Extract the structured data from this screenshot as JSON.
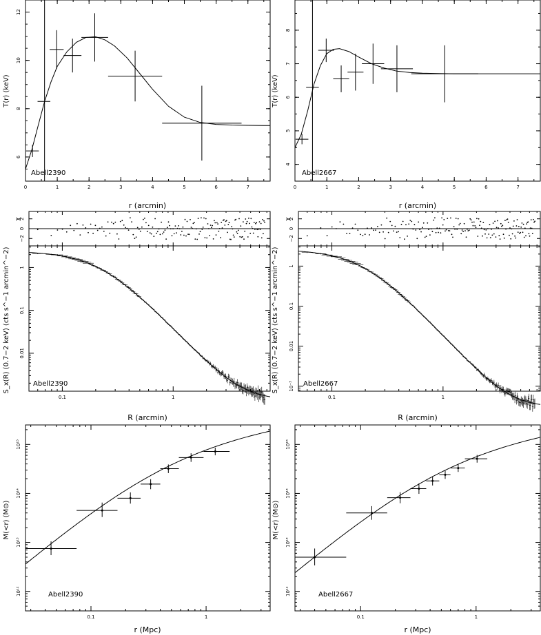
{
  "figure": {
    "background": "#ffffff",
    "ink": "#000000"
  },
  "chart_data": [
    {
      "id": "T_A2390",
      "type": "scatter",
      "panel_label": "Abell2390",
      "xlabel": "r (arcmin)",
      "ylabel": "T(r)  (keV)",
      "xlim": [
        0,
        7.7
      ],
      "ylim": [
        5,
        12.5
      ],
      "xticks": [
        0,
        1,
        2,
        3,
        4,
        5,
        6,
        7
      ],
      "yticks": [
        6,
        8,
        10,
        12
      ],
      "vline_x": 0.6,
      "points": [
        {
          "x": 0.22,
          "y": 6.25,
          "xerr": 0.2,
          "yerr": 0.25
        },
        {
          "x": 0.58,
          "y": 8.3,
          "xerr": 0.2,
          "yerr": 0.0
        },
        {
          "x": 0.98,
          "y": 10.45,
          "xerr": 0.22,
          "yerr": 0.8
        },
        {
          "x": 1.48,
          "y": 10.2,
          "xerr": 0.28,
          "yerr": 0.7
        },
        {
          "x": 2.18,
          "y": 10.95,
          "xerr": 0.42,
          "yerr": 1.0
        },
        {
          "x": 3.45,
          "y": 9.35,
          "xerr": 0.85,
          "yerr": 1.05
        },
        {
          "x": 5.55,
          "y": 7.4,
          "xerr": 1.25,
          "yerr": 1.55
        }
      ],
      "model_curve": {
        "x": [
          0,
          0.2,
          0.4,
          0.6,
          0.8,
          1.0,
          1.3,
          1.6,
          1.9,
          2.2,
          2.5,
          2.8,
          3.2,
          3.6,
          4.0,
          4.5,
          5.0,
          5.5,
          6.0,
          6.5,
          7.0,
          7.7
        ],
        "y": [
          5.5,
          6.3,
          7.3,
          8.3,
          9.1,
          9.75,
          10.35,
          10.75,
          10.95,
          10.98,
          10.85,
          10.6,
          10.1,
          9.45,
          8.8,
          8.1,
          7.65,
          7.43,
          7.35,
          7.32,
          7.31,
          7.3
        ]
      }
    },
    {
      "id": "T_A2667",
      "type": "scatter",
      "panel_label": "Abell2667",
      "xlabel": "r (arcmin)",
      "ylabel": "T(r)  (keV)",
      "xlim": [
        0,
        7.7
      ],
      "ylim": [
        3.5,
        8.9
      ],
      "xticks": [
        0,
        1,
        2,
        3,
        4,
        5,
        6,
        7
      ],
      "yticks": [
        4,
        5,
        6,
        7,
        8
      ],
      "vline_x": 0.55,
      "points": [
        {
          "x": 0.22,
          "y": 4.75,
          "xerr": 0.2,
          "yerr": 0.15
        },
        {
          "x": 0.55,
          "y": 6.3,
          "xerr": 0.2,
          "yerr": 0.0
        },
        {
          "x": 0.98,
          "y": 7.4,
          "xerr": 0.25,
          "yerr": 0.35
        },
        {
          "x": 1.45,
          "y": 6.55,
          "xerr": 0.25,
          "yerr": 0.4
        },
        {
          "x": 1.9,
          "y": 6.75,
          "xerr": 0.25,
          "yerr": 0.55
        },
        {
          "x": 2.45,
          "y": 7.0,
          "xerr": 0.35,
          "yerr": 0.6
        },
        {
          "x": 3.2,
          "y": 6.85,
          "xerr": 0.5,
          "yerr": 0.7
        },
        {
          "x": 4.7,
          "y": 6.7,
          "xerr": 1.05,
          "yerr": 0.85
        }
      ],
      "model_curve": {
        "x": [
          0,
          0.2,
          0.4,
          0.6,
          0.8,
          1.0,
          1.2,
          1.4,
          1.7,
          2.0,
          2.4,
          2.8,
          3.2,
          3.6,
          4.0,
          4.5,
          5.0,
          6.0,
          7.0,
          7.7
        ],
        "y": [
          4.5,
          4.9,
          5.6,
          6.4,
          6.95,
          7.3,
          7.43,
          7.45,
          7.36,
          7.2,
          7.0,
          6.87,
          6.78,
          6.74,
          6.72,
          6.71,
          6.7,
          6.7,
          6.7,
          6.7
        ]
      }
    },
    {
      "id": "SB_A2390",
      "type": "line",
      "panel_label": "Abell2390",
      "xlabel": "R (arcmin)",
      "ylabel": "S_x(R) (0.7−2 keV) (cts s^−1 arcmin^−2)",
      "resid_ylabel": "χ",
      "xscale": "log",
      "yscale": "log",
      "xlim": [
        0.05,
        7.5
      ],
      "ylim": [
        0.0013,
        3.2
      ],
      "xtick_labels": [
        {
          "v": 0.1,
          "t": "0.1"
        },
        {
          "v": 1,
          "t": "1"
        }
      ],
      "ytick_labels": [
        {
          "v": 1,
          "t": "1"
        },
        {
          "v": 0.1,
          "t": "0.1"
        },
        {
          "v": 0.01,
          "t": "0.01"
        }
      ],
      "resid_ylim": [
        -3.5,
        3.5
      ],
      "resid_ticks": [
        {
          "v": 2,
          "t": "2"
        },
        {
          "v": 0,
          "t": "0"
        },
        {
          "v": -2,
          "t": "−2"
        }
      ],
      "beta_model": {
        "S0": 2.4,
        "rc": 0.22,
        "beta": 0.62,
        "bkg": 0.0008
      },
      "seed": 11
    },
    {
      "id": "SB_A2667",
      "type": "line",
      "panel_label": "Abell2667",
      "xlabel": "R (arcmin)",
      "ylabel": "S_x(R) (0.7−2 keV) (cts s^−1 arcmin^−2)",
      "resid_ylabel": "χ",
      "xscale": "log",
      "yscale": "log",
      "xlim": [
        0.05,
        7.5
      ],
      "ylim": [
        0.00075,
        3.2
      ],
      "xtick_labels": [
        {
          "v": 0.1,
          "t": "0.1"
        },
        {
          "v": 1,
          "t": "1"
        }
      ],
      "ytick_labels": [
        {
          "v": 1,
          "t": "1"
        },
        {
          "v": 0.1,
          "t": "0.1"
        },
        {
          "v": 0.01,
          "t": "0.01"
        },
        {
          "v": 0.001,
          "t": "10⁻³"
        }
      ],
      "resid_ylim": [
        -3.5,
        3.5
      ],
      "resid_ticks": [
        {
          "v": 2,
          "t": "2"
        },
        {
          "v": 0,
          "t": "0"
        },
        {
          "v": -2,
          "t": "−2"
        }
      ],
      "beta_model": {
        "S0": 2.6,
        "rc": 0.19,
        "beta": 0.66,
        "bkg": 0.0003
      },
      "seed": 23
    },
    {
      "id": "M_A2390",
      "type": "scatter",
      "panel_label": "Abell2390",
      "xlabel": "r (Mpc)",
      "ylabel": "M(<r)  (M⊙)",
      "xscale": "log",
      "yscale": "log",
      "xlim": [
        0.027,
        3.6
      ],
      "ylim": [
        400000000000.0,
        2500000000000000.0
      ],
      "xtick_labels": [
        {
          "v": 0.1,
          "t": "0.1"
        },
        {
          "v": 1,
          "t": "1"
        }
      ],
      "ytick_labels": [
        {
          "v": 1000000000000.0,
          "t": "10¹²"
        },
        {
          "v": 10000000000000.0,
          "t": "10¹³"
        },
        {
          "v": 100000000000000.0,
          "t": "10¹⁴"
        },
        {
          "v": 1000000000000000.0,
          "t": "10¹⁵"
        }
      ],
      "points": [
        {
          "x": 0.045,
          "y": 7500000000000.0,
          "xlo": 0.02,
          "xhi": 0.075,
          "ylo": 5500000000000.0,
          "yhi": 10500000000000.0
        },
        {
          "x": 0.125,
          "y": 45000000000000.0,
          "xlo": 0.075,
          "xhi": 0.17,
          "ylo": 33000000000000.0,
          "yhi": 65000000000000.0
        },
        {
          "x": 0.22,
          "y": 80000000000000.0,
          "xlo": 0.17,
          "xhi": 0.27,
          "ylo": 62000000000000.0,
          "yhi": 105000000000000.0
        },
        {
          "x": 0.33,
          "y": 155000000000000.0,
          "xlo": 0.27,
          "xhi": 0.4,
          "ylo": 122000000000000.0,
          "yhi": 195000000000000.0
        },
        {
          "x": 0.47,
          "y": 320000000000000.0,
          "xlo": 0.4,
          "xhi": 0.58,
          "ylo": 260000000000000.0,
          "yhi": 390000000000000.0
        },
        {
          "x": 0.74,
          "y": 540000000000000.0,
          "xlo": 0.58,
          "xhi": 0.95,
          "ylo": 440000000000000.0,
          "yhi": 660000000000000.0
        },
        {
          "x": 1.2,
          "y": 720000000000000.0,
          "xlo": 0.95,
          "xhi": 1.6,
          "ylo": 600000000000000.0,
          "yhi": 860000000000000.0
        }
      ],
      "nfw_model": {
        "A": 300000000000000.0,
        "rs": 0.33
      }
    },
    {
      "id": "M_A2667",
      "type": "scatter",
      "panel_label": "Abell2667",
      "xlabel": "r (Mpc)",
      "ylabel": "M(<r)  (M⊙)",
      "xscale": "log",
      "yscale": "log",
      "xlim": [
        0.027,
        3.6
      ],
      "ylim": [
        400000000000.0,
        2500000000000000.0
      ],
      "xtick_labels": [
        {
          "v": 0.1,
          "t": "0.1"
        },
        {
          "v": 1,
          "t": "1"
        }
      ],
      "ytick_labels": [
        {
          "v": 1000000000000.0,
          "t": "10¹²"
        },
        {
          "v": 10000000000000.0,
          "t": "10¹³"
        },
        {
          "v": 100000000000000.0,
          "t": "10¹⁴"
        },
        {
          "v": 1000000000000000.0,
          "t": "10¹⁵"
        }
      ],
      "points": [
        {
          "x": 0.04,
          "y": 5000000000000.0,
          "xlo": 0.02,
          "xhi": 0.075,
          "ylo": 3400000000000.0,
          "yhi": 7500000000000.0
        },
        {
          "x": 0.125,
          "y": 40000000000000.0,
          "xlo": 0.075,
          "xhi": 0.17,
          "ylo": 29000000000000.0,
          "yhi": 55000000000000.0
        },
        {
          "x": 0.22,
          "y": 82000000000000.0,
          "xlo": 0.17,
          "xhi": 0.27,
          "ylo": 63000000000000.0,
          "yhi": 106000000000000.0
        },
        {
          "x": 0.32,
          "y": 125000000000000.0,
          "xlo": 0.27,
          "xhi": 0.37,
          "ylo": 98000000000000.0,
          "yhi": 160000000000000.0
        },
        {
          "x": 0.42,
          "y": 180000000000000.0,
          "xlo": 0.37,
          "xhi": 0.48,
          "ylo": 145000000000000.0,
          "yhi": 225000000000000.0
        },
        {
          "x": 0.54,
          "y": 240000000000000.0,
          "xlo": 0.48,
          "xhi": 0.6,
          "ylo": 198000000000000.0,
          "yhi": 290000000000000.0
        },
        {
          "x": 0.7,
          "y": 330000000000000.0,
          "xlo": 0.6,
          "xhi": 0.8,
          "ylo": 275000000000000.0,
          "yhi": 395000000000000.0
        },
        {
          "x": 1.02,
          "y": 510000000000000.0,
          "xlo": 0.8,
          "xhi": 1.25,
          "ylo": 425000000000000.0,
          "yhi": 610000000000000.0
        }
      ],
      "nfw_model": {
        "A": 235000000000000.0,
        "rs": 0.36
      }
    }
  ]
}
